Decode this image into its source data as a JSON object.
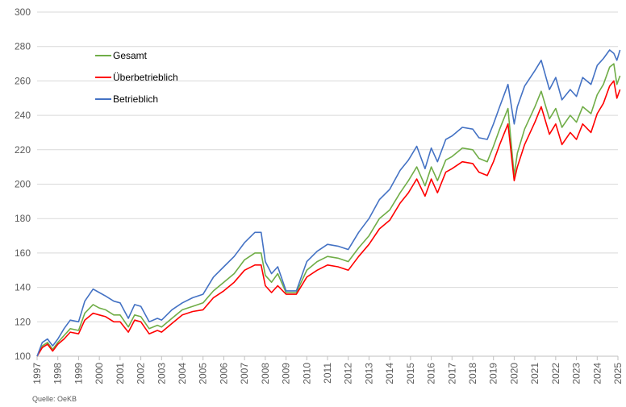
{
  "chart_data": {
    "type": "line",
    "ylim": [
      100,
      300
    ],
    "yticks": [
      "100",
      "120",
      "140",
      "160",
      "180",
      "200",
      "220",
      "240",
      "260",
      "280",
      "300"
    ],
    "xticks": [
      "1997",
      "1998",
      "1999",
      "2000",
      "2001",
      "2002",
      "2003",
      "2004",
      "2005",
      "2006",
      "2007",
      "2008",
      "2009",
      "2010",
      "2011",
      "2012",
      "2013",
      "2014",
      "2015",
      "2016",
      "2017",
      "2018",
      "2019",
      "2020",
      "2021",
      "2022",
      "2023",
      "2024",
      "2025"
    ],
    "xlim": [
      1997,
      2025
    ],
    "grid": "horizontal",
    "legend_position": "top-left",
    "source": "Quelle: OeKB",
    "colors": {
      "gesamt": "#70AD47",
      "ueberbetrieblich": "#FF0000",
      "betrieblich": "#4472C4",
      "grid": "#D9D9D9",
      "tick": "#595959"
    },
    "series": [
      {
        "name": "Gesamt",
        "key": "gesamt",
        "x": [
          1997.0,
          1997.25,
          1997.5,
          1997.75,
          1998.0,
          1998.3,
          1998.6,
          1999.0,
          1999.3,
          1999.7,
          2000.0,
          2000.3,
          2000.7,
          2001.0,
          2001.4,
          2001.7,
          2002.0,
          2002.4,
          2002.8,
          2003.0,
          2003.5,
          2004.0,
          2004.5,
          2005.0,
          2005.5,
          2006.0,
          2006.5,
          2007.0,
          2007.5,
          2007.8,
          2008.0,
          2008.3,
          2008.6,
          2009.0,
          2009.5,
          2010.0,
          2010.5,
          2011.0,
          2011.5,
          2012.0,
          2012.5,
          2013.0,
          2013.5,
          2014.0,
          2014.5,
          2014.9,
          2015.3,
          2015.7,
          2016.0,
          2016.3,
          2016.7,
          2017.0,
          2017.5,
          2018.0,
          2018.3,
          2018.7,
          2019.0,
          2019.3,
          2019.7,
          2020.0,
          2020.15,
          2020.5,
          2021.0,
          2021.3,
          2021.7,
          2022.0,
          2022.3,
          2022.7,
          2023.0,
          2023.3,
          2023.7,
          2024.0,
          2024.3,
          2024.6,
          2024.8,
          2024.95,
          2025.1
        ],
        "values": [
          100,
          106,
          108,
          104,
          108,
          112,
          116,
          115,
          125,
          130,
          128,
          127,
          124,
          124,
          117,
          124,
          123,
          116,
          118,
          117,
          122,
          127,
          129,
          131,
          138,
          143,
          148,
          156,
          160,
          160,
          147,
          143,
          148,
          137,
          137,
          150,
          155,
          158,
          157,
          155,
          163,
          170,
          180,
          185,
          195,
          202,
          210,
          199,
          210,
          202,
          214,
          216,
          221,
          220,
          215,
          213,
          222,
          232,
          244,
          205,
          218,
          232,
          245,
          254,
          238,
          244,
          233,
          240,
          236,
          245,
          241,
          252,
          258,
          268,
          270,
          258,
          263
        ]
      },
      {
        "name": "Überbetrieblich",
        "key": "ueberbetrieblich",
        "x": [
          1997.0,
          1997.25,
          1997.5,
          1997.75,
          1998.0,
          1998.3,
          1998.6,
          1999.0,
          1999.3,
          1999.7,
          2000.0,
          2000.3,
          2000.7,
          2001.0,
          2001.4,
          2001.7,
          2002.0,
          2002.4,
          2002.8,
          2003.0,
          2003.5,
          2004.0,
          2004.5,
          2005.0,
          2005.5,
          2006.0,
          2006.5,
          2007.0,
          2007.5,
          2007.8,
          2008.0,
          2008.3,
          2008.6,
          2009.0,
          2009.5,
          2010.0,
          2010.5,
          2011.0,
          2011.5,
          2012.0,
          2012.5,
          2013.0,
          2013.5,
          2014.0,
          2014.5,
          2014.9,
          2015.3,
          2015.7,
          2016.0,
          2016.3,
          2016.7,
          2017.0,
          2017.5,
          2018.0,
          2018.3,
          2018.7,
          2019.0,
          2019.3,
          2019.7,
          2020.0,
          2020.15,
          2020.5,
          2021.0,
          2021.3,
          2021.7,
          2022.0,
          2022.3,
          2022.7,
          2023.0,
          2023.3,
          2023.7,
          2024.0,
          2024.3,
          2024.6,
          2024.8,
          2024.95,
          2025.1
        ],
        "values": [
          100,
          105,
          107,
          103,
          107,
          110,
          114,
          113,
          121,
          125,
          124,
          123,
          120,
          120,
          114,
          121,
          120,
          113,
          115,
          114,
          119,
          124,
          126,
          127,
          134,
          138,
          143,
          150,
          153,
          153,
          141,
          137,
          141,
          136,
          136,
          146,
          150,
          153,
          152,
          150,
          158,
          165,
          174,
          179,
          189,
          195,
          203,
          193,
          203,
          195,
          207,
          209,
          213,
          212,
          207,
          205,
          213,
          223,
          235,
          202,
          210,
          223,
          236,
          245,
          229,
          235,
          223,
          230,
          226,
          235,
          230,
          241,
          247,
          257,
          260,
          250,
          255
        ]
      },
      {
        "name": "Betrieblich",
        "key": "betrieblich",
        "x": [
          1997.0,
          1997.25,
          1997.5,
          1997.75,
          1998.0,
          1998.3,
          1998.6,
          1999.0,
          1999.3,
          1999.7,
          2000.0,
          2000.3,
          2000.7,
          2001.0,
          2001.4,
          2001.7,
          2002.0,
          2002.4,
          2002.8,
          2003.0,
          2003.5,
          2004.0,
          2004.5,
          2005.0,
          2005.5,
          2006.0,
          2006.5,
          2007.0,
          2007.5,
          2007.8,
          2008.0,
          2008.3,
          2008.6,
          2009.0,
          2009.5,
          2010.0,
          2010.5,
          2011.0,
          2011.5,
          2012.0,
          2012.5,
          2013.0,
          2013.5,
          2014.0,
          2014.5,
          2014.9,
          2015.3,
          2015.7,
          2016.0,
          2016.3,
          2016.7,
          2017.0,
          2017.5,
          2018.0,
          2018.3,
          2018.7,
          2019.0,
          2019.3,
          2019.7,
          2020.0,
          2020.15,
          2020.5,
          2021.0,
          2021.3,
          2021.7,
          2022.0,
          2022.3,
          2022.7,
          2023.0,
          2023.3,
          2023.7,
          2024.0,
          2024.3,
          2024.6,
          2024.8,
          2024.95,
          2025.1
        ],
        "values": [
          100,
          108,
          110,
          106,
          110,
          116,
          121,
          120,
          132,
          139,
          137,
          135,
          132,
          131,
          122,
          130,
          129,
          120,
          122,
          121,
          127,
          131,
          134,
          136,
          146,
          152,
          158,
          166,
          172,
          172,
          155,
          148,
          152,
          138,
          138,
          155,
          161,
          165,
          164,
          162,
          172,
          180,
          191,
          197,
          208,
          214,
          222,
          209,
          221,
          213,
          226,
          228,
          233,
          232,
          227,
          226,
          235,
          245,
          258,
          235,
          245,
          257,
          266,
          272,
          255,
          262,
          249,
          255,
          251,
          262,
          258,
          269,
          273,
          278,
          276,
          272,
          278
        ]
      }
    ]
  }
}
